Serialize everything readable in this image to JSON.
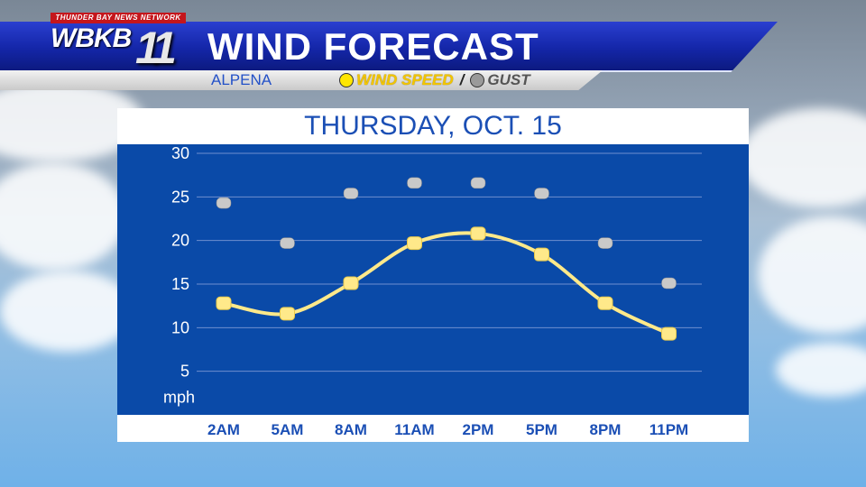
{
  "header": {
    "network": "THUNDER BAY NEWS NETWORK",
    "station": "WBKB",
    "channel": "11",
    "title": "WIND FORECAST",
    "location": "ALPENA",
    "legend_wind": "WIND SPEED",
    "legend_sep": "/",
    "legend_gust": "GUST"
  },
  "colors": {
    "wind": "#ffe98a",
    "gust": "#c9c9c9",
    "plot_bg": "#0a4aa8",
    "header": "#1426a8"
  },
  "chart_data": {
    "type": "line",
    "title": "THURSDAY, OCT. 15",
    "x": [
      "2AM",
      "5AM",
      "8AM",
      "11AM",
      "2PM",
      "5PM",
      "8PM",
      "11PM"
    ],
    "series": [
      {
        "name": "WIND SPEED",
        "values": [
          12.8,
          11.6,
          15.1,
          19.7,
          20.8,
          18.4,
          12.8,
          9.3
        ]
      },
      {
        "name": "GUST",
        "values": [
          24.3,
          19.7,
          25.4,
          26.6,
          26.6,
          25.4,
          19.7,
          15.1
        ]
      }
    ],
    "yticks": [
      30,
      25,
      20,
      15,
      10,
      5
    ],
    "yunit": "mph",
    "ylim": [
      0,
      30
    ],
    "grid": true
  }
}
